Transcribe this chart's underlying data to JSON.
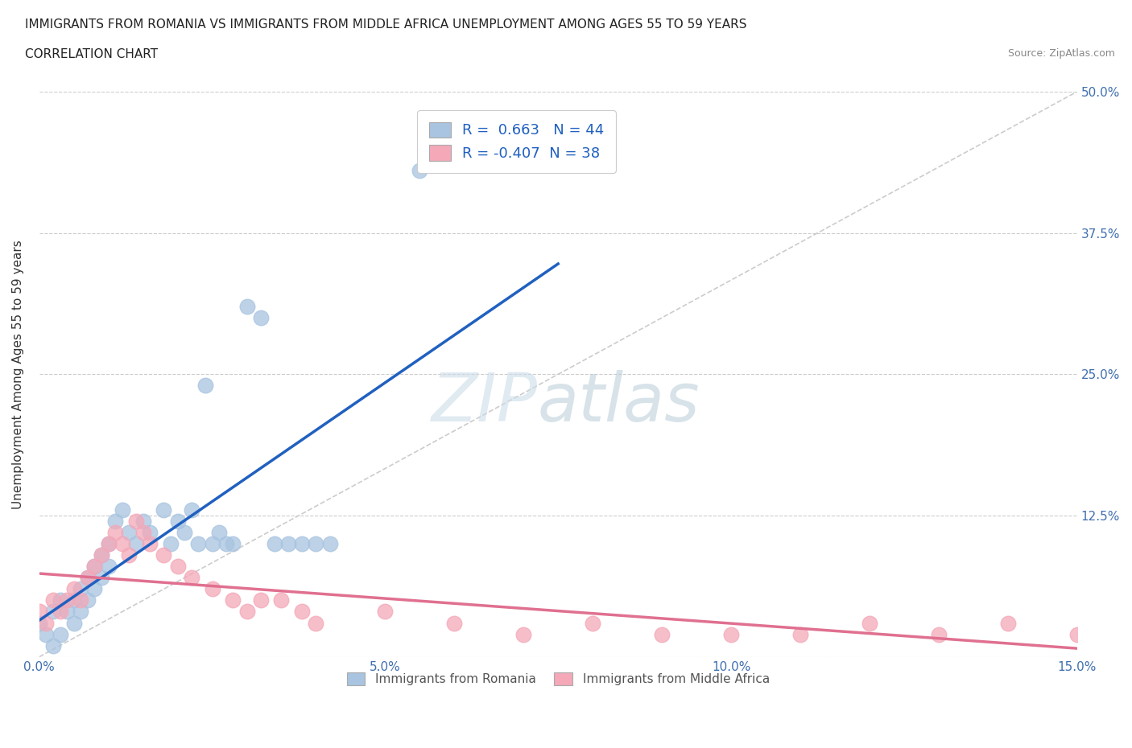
{
  "title_line1": "IMMIGRANTS FROM ROMANIA VS IMMIGRANTS FROM MIDDLE AFRICA UNEMPLOYMENT AMONG AGES 55 TO 59 YEARS",
  "title_line2": "CORRELATION CHART",
  "source": "Source: ZipAtlas.com",
  "ylabel": "Unemployment Among Ages 55 to 59 years",
  "xlim": [
    0.0,
    0.15
  ],
  "ylim": [
    0.0,
    0.5
  ],
  "romania_color": "#a8c4e0",
  "middle_africa_color": "#f4a8b8",
  "romania_line_color": "#2060c0",
  "middle_africa_line_color": "#e07090",
  "romania_R": 0.663,
  "romania_N": 44,
  "middle_africa_R": -0.407,
  "middle_africa_N": 38,
  "romania_scatter_x": [
    0.0,
    0.001,
    0.002,
    0.002,
    0.003,
    0.003,
    0.004,
    0.005,
    0.005,
    0.006,
    0.006,
    0.007,
    0.007,
    0.008,
    0.008,
    0.009,
    0.009,
    0.01,
    0.01,
    0.011,
    0.012,
    0.013,
    0.014,
    0.015,
    0.016,
    0.018,
    0.019,
    0.02,
    0.021,
    0.022,
    0.023,
    0.024,
    0.025,
    0.026,
    0.027,
    0.028,
    0.03,
    0.032,
    0.034,
    0.036,
    0.038,
    0.04,
    0.042,
    0.055
  ],
  "romania_scatter_y": [
    0.03,
    0.02,
    0.04,
    0.01,
    0.05,
    0.02,
    0.04,
    0.05,
    0.03,
    0.06,
    0.04,
    0.07,
    0.05,
    0.08,
    0.06,
    0.09,
    0.07,
    0.1,
    0.08,
    0.12,
    0.13,
    0.11,
    0.1,
    0.12,
    0.11,
    0.13,
    0.1,
    0.12,
    0.11,
    0.13,
    0.1,
    0.24,
    0.1,
    0.11,
    0.1,
    0.1,
    0.31,
    0.3,
    0.1,
    0.1,
    0.1,
    0.1,
    0.1,
    0.43
  ],
  "middle_africa_scatter_x": [
    0.0,
    0.001,
    0.002,
    0.003,
    0.004,
    0.005,
    0.006,
    0.007,
    0.008,
    0.009,
    0.01,
    0.011,
    0.012,
    0.013,
    0.014,
    0.015,
    0.016,
    0.018,
    0.02,
    0.022,
    0.025,
    0.028,
    0.03,
    0.032,
    0.035,
    0.038,
    0.04,
    0.05,
    0.06,
    0.07,
    0.08,
    0.09,
    0.1,
    0.11,
    0.12,
    0.13,
    0.14,
    0.15
  ],
  "middle_africa_scatter_y": [
    0.04,
    0.03,
    0.05,
    0.04,
    0.05,
    0.06,
    0.05,
    0.07,
    0.08,
    0.09,
    0.1,
    0.11,
    0.1,
    0.09,
    0.12,
    0.11,
    0.1,
    0.09,
    0.08,
    0.07,
    0.06,
    0.05,
    0.04,
    0.05,
    0.05,
    0.04,
    0.03,
    0.04,
    0.03,
    0.02,
    0.03,
    0.02,
    0.02,
    0.02,
    0.03,
    0.02,
    0.03,
    0.02
  ]
}
